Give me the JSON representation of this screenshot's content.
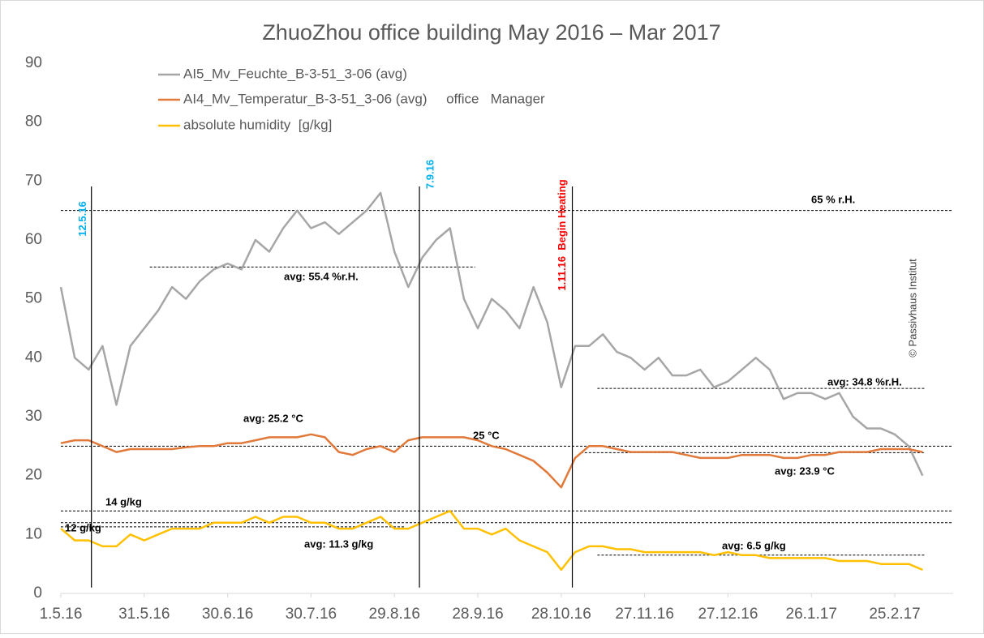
{
  "chart_data": {
    "type": "line",
    "title": "ZhuoZhou   office  building  May 2016 – Mar 2017",
    "x": [
      "2016-05-01",
      "2016-05-06",
      "2016-05-11",
      "2016-05-16",
      "2016-05-21",
      "2016-05-26",
      "2016-05-31",
      "2016-06-05",
      "2016-06-10",
      "2016-06-15",
      "2016-06-20",
      "2016-06-25",
      "2016-06-30",
      "2016-07-05",
      "2016-07-10",
      "2016-07-15",
      "2016-07-20",
      "2016-07-25",
      "2016-07-30",
      "2016-08-04",
      "2016-08-09",
      "2016-08-14",
      "2016-08-19",
      "2016-08-24",
      "2016-08-29",
      "2016-09-03",
      "2016-09-08",
      "2016-09-13",
      "2016-09-18",
      "2016-09-23",
      "2016-09-28",
      "2016-10-03",
      "2016-10-08",
      "2016-10-13",
      "2016-10-18",
      "2016-10-23",
      "2016-10-28",
      "2016-11-02",
      "2016-11-07",
      "2016-11-12",
      "2016-11-17",
      "2016-11-22",
      "2016-11-27",
      "2016-12-02",
      "2016-12-07",
      "2016-12-12",
      "2016-12-17",
      "2016-12-22",
      "2016-12-27",
      "2017-01-01",
      "2017-01-06",
      "2017-01-11",
      "2017-01-16",
      "2017-01-21",
      "2017-01-26",
      "2017-01-31",
      "2017-02-05",
      "2017-02-10",
      "2017-02-15",
      "2017-02-20",
      "2017-02-25",
      "2017-03-02",
      "2017-03-07"
    ],
    "series": [
      {
        "name": "AI5_Mv_Feuchte_B-3-51_3-06 (avg)",
        "color": "#a6a6a6",
        "values": [
          52,
          40,
          38,
          42,
          32,
          42,
          45,
          48,
          52,
          50,
          53,
          55,
          56,
          55,
          60,
          58,
          62,
          65,
          62,
          63,
          61,
          63,
          65,
          68,
          58,
          52,
          57,
          60,
          62,
          50,
          45,
          50,
          48,
          45,
          52,
          46,
          35,
          42,
          42,
          44,
          41,
          40,
          38,
          40,
          37,
          37,
          38,
          35,
          36,
          38,
          40,
          38,
          33,
          34,
          34,
          33,
          34,
          30,
          28,
          28,
          27,
          25,
          20
        ]
      },
      {
        "name": "AI4_Mv_Temperatur_B-3-51_3-06 (avg)     office   Manager",
        "color": "#e0793a",
        "values": [
          25.5,
          26,
          26,
          25,
          24,
          24.5,
          24.5,
          24.5,
          24.5,
          24.8,
          25,
          25,
          25.5,
          25.5,
          26,
          26.5,
          26.5,
          26.5,
          27,
          26.5,
          24,
          23.5,
          24.5,
          25,
          24,
          26,
          26.5,
          26.5,
          26.5,
          26.5,
          26,
          25,
          24.5,
          23.5,
          22.5,
          20.5,
          18,
          23,
          25,
          25,
          24.5,
          24,
          24,
          24,
          24,
          23.5,
          23,
          23,
          23,
          23.5,
          23.5,
          23.5,
          23,
          23,
          23.5,
          23.5,
          24,
          24,
          24,
          24.5,
          24.5,
          24.5,
          24
        ]
      },
      {
        "name": "absolute humidity  [g/kg]",
        "color": "#ffc000",
        "values": [
          11,
          9,
          9,
          8,
          8,
          10,
          9,
          10,
          11,
          11,
          11,
          12,
          12,
          12,
          13,
          12,
          13,
          13,
          12,
          12,
          11,
          11,
          12,
          13,
          11,
          11,
          12,
          13,
          14,
          11,
          11,
          10,
          11,
          9,
          8,
          7,
          4,
          7,
          8,
          8,
          7.5,
          7.5,
          7,
          7,
          7,
          7,
          7,
          6.5,
          7,
          6.5,
          6.5,
          6,
          6,
          6,
          6,
          6,
          5.5,
          5.5,
          5.5,
          5,
          5,
          5,
          4
        ]
      }
    ],
    "xlim": [
      "2016-05-01",
      "2017-03-18"
    ],
    "xticks": [
      {
        "value": "2016-05-01",
        "label": "1.5.16"
      },
      {
        "value": "2016-05-31",
        "label": "31.5.16"
      },
      {
        "value": "2016-06-30",
        "label": "30.6.16"
      },
      {
        "value": "2016-07-30",
        "label": "30.7.16"
      },
      {
        "value": "2016-08-29",
        "label": "29.8.16"
      },
      {
        "value": "2016-09-28",
        "label": "28.9.16"
      },
      {
        "value": "2016-10-28",
        "label": "28.10.16"
      },
      {
        "value": "2016-11-27",
        "label": "27.11.16"
      },
      {
        "value": "2016-12-27",
        "label": "27.12.16"
      },
      {
        "value": "2017-01-26",
        "label": "26.1.17"
      },
      {
        "value": "2017-02-25",
        "label": "25.2.17"
      }
    ],
    "ylim": [
      0,
      90
    ],
    "yticks": [
      0,
      10,
      20,
      30,
      40,
      50,
      60,
      70,
      80,
      90
    ],
    "grid": false,
    "legend": "top-left",
    "reference_lines": [
      {
        "value": 65,
        "label": "65 % r.H.",
        "from": "2016-05-01",
        "to": "2017-03-18"
      },
      {
        "value": 25,
        "label": "25 °C",
        "from": "2016-05-01",
        "to": "2017-03-18"
      },
      {
        "value": 14,
        "label": "14 g/kg",
        "from": "2016-05-01",
        "to": "2017-03-18"
      },
      {
        "value": 12,
        "label": "12 g/kg",
        "from": "2016-05-01",
        "to": "2017-03-18"
      },
      {
        "value": 55.4,
        "label": "avg: 55.4 %r.H.",
        "from": "2016-06-02",
        "to": "2016-09-27"
      },
      {
        "value": 25.2,
        "label": "avg: 25.2 °C"
      },
      {
        "value": 34.8,
        "label": "avg: 34.8 %r.H.",
        "from": "2016-11-10",
        "to": "2017-03-08"
      },
      {
        "value": 23.9,
        "label": "avg: 23.9 °C",
        "from": "2016-11-04",
        "to": "2017-03-08"
      },
      {
        "value": 11.3,
        "label": "avg: 11.3 g/kg",
        "from": "2016-05-01",
        "to": "2016-09-02"
      },
      {
        "value": 6.5,
        "label": "avg: 6.5 g/kg",
        "from": "2016-11-10",
        "to": "2017-03-08"
      }
    ],
    "events": [
      {
        "date": "2016-05-12",
        "label": "12.5.16",
        "color": "#00b0f0"
      },
      {
        "date": "2016-09-07",
        "label": "7.9.16",
        "color": "#00b0f0"
      },
      {
        "date": "2016-11-01",
        "label": "1.11.16  Begin Heating",
        "color": "#ff0000"
      }
    ],
    "copyright": "© Passivhaus Institut"
  }
}
